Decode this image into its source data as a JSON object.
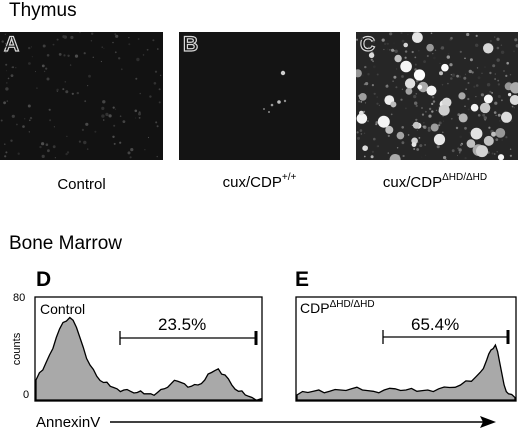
{
  "thymus": {
    "title": "Thymus",
    "panels": [
      {
        "letter": "A",
        "caption_base": "Control",
        "caption_sup": ""
      },
      {
        "letter": "B",
        "caption_base": "cux/CDP",
        "caption_sup": "+/+"
      },
      {
        "letter": "C",
        "caption_base": "cux/CDP",
        "caption_sup": "ΔHD/ΔHD"
      }
    ]
  },
  "bone_marrow": {
    "title": "Bone Marrow",
    "y_axis_label": "counts",
    "y_ticks": [
      "80",
      "0"
    ],
    "x_axis_label": "AnnexinV",
    "histograms": [
      {
        "letter": "D",
        "label_base": "Control",
        "label_sup": "",
        "gate_percent": "23.5%"
      },
      {
        "letter": "E",
        "label_base": "CDP",
        "label_sup": "ΔHD/ΔHD",
        "gate_percent": "65.4%"
      }
    ]
  },
  "chart_data": [
    {
      "type": "area",
      "title": "Control",
      "ylabel": "counts",
      "xlabel": "AnnexinV",
      "ylim": [
        0,
        80
      ],
      "gate_percent": 23.5,
      "x": [
        0,
        0.03,
        0.06,
        0.09,
        0.12,
        0.15,
        0.18,
        0.21,
        0.24,
        0.27,
        0.3,
        0.33,
        0.36,
        0.39,
        0.42,
        0.45,
        0.48,
        0.51,
        0.54,
        0.57,
        0.6,
        0.63,
        0.66,
        0.69,
        0.72,
        0.75,
        0.78,
        0.81,
        0.84,
        0.87,
        0.9,
        0.93,
        0.96,
        1.0
      ],
      "values": [
        16,
        24,
        36,
        50,
        62,
        66,
        58,
        42,
        28,
        19,
        14,
        11,
        9,
        8,
        7,
        6,
        5,
        5,
        6,
        9,
        13,
        15,
        13,
        11,
        12,
        16,
        22,
        25,
        20,
        12,
        7,
        4,
        2,
        1
      ]
    },
    {
      "type": "area",
      "title": "CDPΔHD/ΔHD",
      "ylabel": "counts",
      "xlabel": "AnnexinV",
      "ylim": [
        0,
        80
      ],
      "gate_percent": 65.4,
      "x": [
        0,
        0.05,
        0.1,
        0.15,
        0.2,
        0.25,
        0.3,
        0.35,
        0.4,
        0.45,
        0.5,
        0.55,
        0.6,
        0.65,
        0.7,
        0.75,
        0.8,
        0.84,
        0.87,
        0.89,
        0.91,
        0.93,
        0.95,
        0.97,
        1.0
      ],
      "values": [
        4,
        6,
        8,
        7,
        8,
        9,
        8,
        7,
        8,
        9,
        8,
        7,
        8,
        9,
        10,
        12,
        15,
        22,
        32,
        40,
        44,
        30,
        12,
        5,
        2
      ]
    }
  ]
}
